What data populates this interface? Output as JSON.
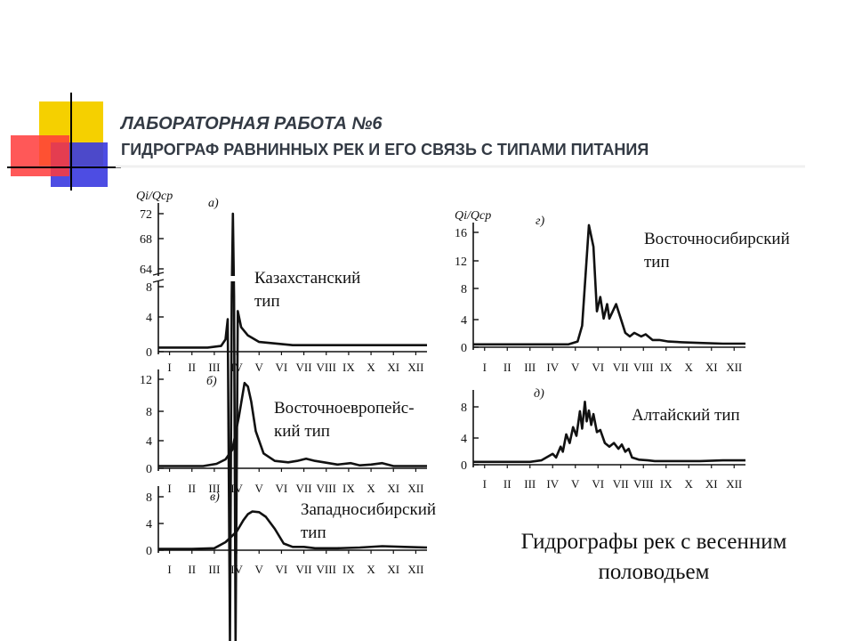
{
  "slide": {
    "title_line1": "ЛАБОРАТОРНАЯ РАБОТА №6",
    "title_line2": "ГИДРОГРАФ РАВНИННЫХ РЕК И ЕГО СВЯЗЬ С ТИПАМИ ПИТАНИЯ",
    "caption_line1": "Гидрографы рек с весенним",
    "caption_line2": "половодьем"
  },
  "colors": {
    "ink": "#111111",
    "deco_yellow": "#f5d000",
    "deco_red": "#ff3b3b",
    "deco_blue": "#3a3ae0",
    "title": "#333a44"
  },
  "chart_data": [
    {
      "type": "line",
      "panel": "а)",
      "label": "Казахстанский\nтип",
      "y_axis_label": "Qi/Qср",
      "yticks": [
        "72",
        "68",
        "64",
        "8",
        "4",
        "0"
      ],
      "axis_break": true,
      "xticks": [
        "I",
        "II",
        "III",
        "IV",
        "V",
        "VI",
        "VII",
        "VIII",
        "IX",
        "X",
        "XI",
        "XII"
      ],
      "x": [
        0,
        2.2,
        2.8,
        3.0,
        3.1,
        3.2,
        3.28,
        3.33,
        3.38,
        3.45,
        3.55,
        3.7,
        4.0,
        4.5,
        6.0,
        12.0
      ],
      "y": [
        0.5,
        0.5,
        0.7,
        1.5,
        4,
        10,
        60,
        72,
        60,
        10,
        5,
        3,
        2,
        1.2,
        0.8,
        0.8
      ]
    },
    {
      "type": "line",
      "panel": "г)",
      "label": "Восточносибирский\nтип",
      "y_axis_label": "Qi/Qср",
      "yticks": [
        "16",
        "12",
        "8",
        "4",
        "0"
      ],
      "xticks": [
        "I",
        "II",
        "III",
        "IV",
        "V",
        "VI",
        "VII",
        "VIII",
        "IX",
        "X",
        "XI",
        "XII"
      ],
      "x": [
        0,
        4.2,
        4.6,
        4.8,
        4.95,
        5.1,
        5.3,
        5.45,
        5.6,
        5.75,
        5.9,
        6.0,
        6.15,
        6.3,
        6.5,
        6.7,
        6.9,
        7.1,
        7.4,
        7.6,
        7.9,
        8.2,
        8.6,
        9.2,
        10.0,
        11.0,
        12.0
      ],
      "y": [
        0.4,
        0.4,
        0.8,
        3,
        10,
        17,
        14,
        5,
        7,
        4,
        6,
        4,
        5,
        6,
        4,
        2,
        1.5,
        2,
        1.5,
        1.8,
        1,
        1,
        0.8,
        0.7,
        0.6,
        0.5,
        0.5
      ]
    },
    {
      "type": "line",
      "panel": "б)",
      "label": "Восточноевропейс-\nкий тип",
      "yticks": [
        "12",
        "8",
        "4",
        "0"
      ],
      "xticks": [
        "I",
        "II",
        "III",
        "IV",
        "V",
        "VI",
        "VII",
        "VIII",
        "IX",
        "X",
        "XI",
        "XII"
      ],
      "x": [
        0,
        2.0,
        2.6,
        3.0,
        3.3,
        3.6,
        3.85,
        4.0,
        4.15,
        4.35,
        4.7,
        5.2,
        5.8,
        6.2,
        6.6,
        7.0,
        7.4,
        8.0,
        8.6,
        9.0,
        9.5,
        10.0,
        10.5,
        11.0,
        12.0
      ],
      "y": [
        0.3,
        0.3,
        0.6,
        1.2,
        2.5,
        7,
        11.5,
        11,
        9,
        5,
        2,
        1,
        0.8,
        1,
        1.3,
        1,
        0.8,
        0.5,
        0.7,
        0.4,
        0.5,
        0.7,
        0.3,
        0.3,
        0.3
      ]
    },
    {
      "type": "line",
      "panel": "д)",
      "label": "Алтайский тип",
      "yticks": [
        "8",
        "4",
        "0"
      ],
      "xticks": [
        "I",
        "II",
        "III",
        "IV",
        "V",
        "VI",
        "VII",
        "VIII",
        "IX",
        "X",
        "XI",
        "XII"
      ],
      "x": [
        0,
        2.5,
        3.0,
        3.5,
        3.65,
        3.85,
        3.95,
        4.1,
        4.25,
        4.4,
        4.55,
        4.7,
        4.8,
        4.92,
        5.0,
        5.1,
        5.2,
        5.3,
        5.45,
        5.6,
        5.8,
        6.0,
        6.2,
        6.4,
        6.55,
        6.7,
        6.85,
        7.0,
        7.3,
        7.7,
        8.0,
        9.0,
        10.0,
        11.0,
        12.0
      ],
      "y": [
        0.4,
        0.4,
        0.6,
        1.5,
        1.0,
        2.5,
        1.8,
        4.2,
        3.0,
        5.2,
        4.0,
        7.4,
        5.0,
        8.7,
        6.0,
        7.5,
        5.5,
        7.0,
        4.5,
        4.8,
        3.0,
        2.5,
        3.0,
        2.2,
        2.8,
        1.8,
        2.2,
        1.0,
        0.7,
        0.6,
        0.5,
        0.5,
        0.5,
        0.6,
        0.6
      ]
    },
    {
      "type": "line",
      "panel": "в)",
      "label": "Западносибирский\nтип",
      "yticks": [
        "8",
        "4",
        "0"
      ],
      "xticks": [
        "I",
        "II",
        "III",
        "IV",
        "V",
        "VI",
        "VII",
        "VIII",
        "IX",
        "X",
        "XI",
        "XII"
      ],
      "x": [
        0,
        1.5,
        2.5,
        3.0,
        3.5,
        3.8,
        4.0,
        4.2,
        4.5,
        4.8,
        5.2,
        5.6,
        6.0,
        6.5,
        7.0,
        8.0,
        9.0,
        10.0,
        11.0,
        12.0
      ],
      "y": [
        0.2,
        0.2,
        0.3,
        1.2,
        2.8,
        4.5,
        5.4,
        5.8,
        5.7,
        5.0,
        3.2,
        1.0,
        0.5,
        0.5,
        0.3,
        0.3,
        0.4,
        0.6,
        0.5,
        0.4
      ]
    }
  ]
}
